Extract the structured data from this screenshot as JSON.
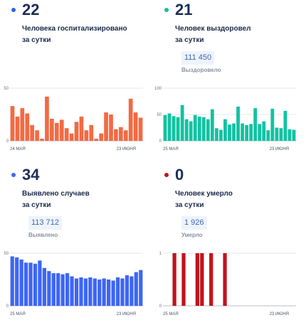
{
  "panels": [
    {
      "number": "22",
      "desc_line1": "Человека госпитализировано",
      "desc_line2": "за сутки",
      "badge_value": "",
      "badge_label": "",
      "color": "#f36a43",
      "dot_color": "#2f64e0"
    },
    {
      "number": "21",
      "desc_line1": "Человек выздоровел",
      "desc_line2": "за сутки",
      "badge_value": "111 450",
      "badge_label": "Выздоровело",
      "color": "#12c2a2",
      "dot_color": "#12c2a2"
    },
    {
      "number": "34",
      "desc_line1": "Выявлено случаев",
      "desc_line2": "за сутки",
      "badge_value": "113 712",
      "badge_label": "Выявлено",
      "color": "#3d66f5",
      "dot_color": "#3d66f5"
    },
    {
      "number": "0",
      "desc_line1": "Человек умерло",
      "desc_line2": "за сутки",
      "badge_value": "1 926",
      "badge_label": "Умерло",
      "color": "#c3121b",
      "dot_color": "#c3121b"
    }
  ],
  "chart_data": [
    {
      "type": "bar",
      "x_start_label": "24 МАЯ",
      "x_end_label": "23 ИЮНЯ",
      "ylim": [
        0,
        50
      ],
      "yticks": [
        "0",
        "50"
      ],
      "values": [
        33,
        23,
        31,
        26,
        15,
        10,
        2,
        42,
        21,
        17,
        20,
        12,
        7,
        18,
        23,
        10,
        15,
        2,
        7,
        27,
        25,
        11,
        13,
        10,
        40,
        27,
        22
      ]
    },
    {
      "type": "bar",
      "x_start_label": "25 МАЯ",
      "x_end_label": "23 ИЮНЯ",
      "ylim": [
        0,
        100
      ],
      "yticks": [
        "0",
        "50",
        "100"
      ],
      "values": [
        49,
        52,
        47,
        45,
        68,
        41,
        37,
        49,
        46,
        45,
        41,
        60,
        24,
        21,
        41,
        31,
        33,
        65,
        33,
        30,
        32,
        62,
        32,
        37,
        20,
        61,
        25,
        24,
        57,
        22,
        21
      ]
    },
    {
      "type": "bar",
      "x_start_label": "25 МАЯ",
      "x_end_label": "23 ИЮНЯ",
      "ylim": [
        0,
        50
      ],
      "yticks": [
        "0",
        "50"
      ],
      "values": [
        47,
        46,
        44,
        41,
        41,
        40,
        43,
        36,
        33,
        31,
        31,
        30,
        31,
        28,
        26,
        27,
        26,
        27,
        26,
        25,
        26,
        25,
        24,
        27,
        26,
        29,
        28,
        32,
        34
      ]
    },
    {
      "type": "bar",
      "x_start_label": "25 МАЯ",
      "x_end_label": "23 ИЮНЯ",
      "ylim": [
        0,
        1
      ],
      "yticks": [
        "0",
        "1"
      ],
      "values": [
        0,
        0,
        1,
        0,
        1,
        0,
        0,
        1,
        1,
        0,
        1,
        0,
        0,
        1,
        0,
        0,
        0,
        0,
        0,
        0,
        0,
        0,
        0,
        0,
        0,
        0,
        0,
        0,
        0
      ]
    }
  ]
}
